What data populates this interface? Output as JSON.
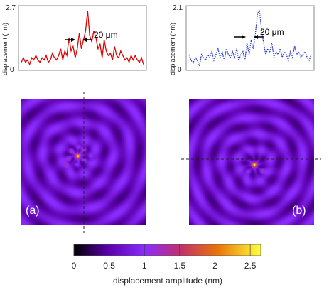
{
  "colorbar": {
    "label": "displacement amplitude (nm)",
    "ticks": [
      "0",
      "0.5",
      "1",
      "1.5",
      "2",
      "2.5"
    ],
    "tick_values": [
      0,
      0.5,
      1,
      1.5,
      2,
      2.5
    ],
    "range": [
      0,
      2.65
    ],
    "colormap": [
      "#000000",
      "#5a00a8",
      "#8a2cff",
      "#c0306a",
      "#e8740a",
      "#ffff40"
    ]
  },
  "chart_data": [
    {
      "type": "line",
      "panel": "a-profile",
      "ylabel": "displacement (nm)",
      "ylim": [
        0,
        2.7
      ],
      "ytick_labels": [
        "0",
        "2.7"
      ],
      "annotation": "20 μm",
      "line_color": "#e00000",
      "line_style": "solid",
      "x": [
        0,
        1,
        2,
        3,
        4,
        5,
        6,
        7,
        8,
        9,
        10,
        11,
        12,
        13,
        14,
        15,
        16,
        17,
        18,
        19,
        20,
        21,
        22,
        23,
        24,
        25,
        26,
        27,
        28,
        29,
        30,
        31,
        32,
        33,
        34,
        35,
        36,
        37,
        38,
        39,
        40,
        41,
        42,
        43,
        44,
        45,
        46,
        47,
        48,
        49,
        50,
        51,
        52,
        53,
        54,
        55,
        56,
        57,
        58,
        59
      ],
      "y": [
        0.3,
        0.5,
        0.3,
        0.4,
        0.2,
        0.5,
        0.4,
        0.6,
        0.4,
        0.3,
        0.5,
        0.4,
        0.6,
        0.3,
        0.4,
        0.7,
        0.5,
        0.4,
        0.6,
        0.9,
        0.4,
        0.8,
        0.6,
        1.4,
        0.8,
        1.0,
        0.5,
        0.9,
        1.6,
        0.9,
        1.3,
        1.7,
        2.6,
        1.5,
        1.2,
        1.7,
        1.4,
        0.9,
        1.1,
        0.5,
        1.3,
        0.8,
        0.6,
        0.7,
        0.4,
        1.0,
        0.6,
        0.5,
        0.8,
        0.6,
        0.4,
        0.5,
        0.3,
        0.6,
        0.4,
        0.6,
        0.4,
        0.3,
        0.5,
        0.2
      ]
    },
    {
      "type": "line",
      "panel": "b-profile",
      "ylabel": "displacement (nm)",
      "ylim": [
        0,
        2.1
      ],
      "ytick_labels": [
        "0",
        "2.1"
      ],
      "annotation": "20 μm",
      "line_color": "#2a3ad0",
      "line_style": "dotted",
      "x": [
        0,
        1,
        2,
        3,
        4,
        5,
        6,
        7,
        8,
        9,
        10,
        11,
        12,
        13,
        14,
        15,
        16,
        17,
        18,
        19,
        20,
        21,
        22,
        23,
        24,
        25,
        26,
        27,
        28,
        29,
        30,
        31,
        32,
        33,
        34,
        35,
        36,
        37,
        38,
        39,
        40,
        41,
        42,
        43,
        44,
        45,
        46,
        47,
        48,
        49,
        50,
        51,
        52,
        53,
        54,
        55,
        56,
        57,
        58,
        59
      ],
      "y": [
        0.5,
        0.3,
        0.2,
        0.4,
        0.3,
        0.1,
        0.5,
        0.4,
        0.3,
        0.5,
        0.4,
        0.6,
        0.3,
        0.5,
        0.7,
        0.4,
        0.6,
        0.3,
        0.7,
        0.5,
        0.4,
        0.6,
        0.4,
        0.7,
        0.3,
        0.5,
        0.6,
        0.3,
        0.9,
        0.5,
        1.0,
        0.7,
        1.2,
        1.9,
        2.05,
        1.4,
        0.9,
        0.5,
        0.7,
        0.6,
        0.9,
        0.4,
        0.6,
        0.5,
        0.7,
        0.4,
        0.6,
        0.5,
        0.3,
        0.6,
        0.4,
        0.8,
        0.5,
        0.6,
        0.4,
        0.5,
        0.6,
        0.4,
        0.3,
        0.5
      ]
    }
  ],
  "panels": {
    "a": {
      "label": "(a)",
      "center": [
        0.45,
        0.45
      ],
      "ring_period": 0.14,
      "hot_spots": [
        {
          "u": 0.45,
          "v": 0.45,
          "amp": 2.3
        },
        {
          "u": 0.4,
          "v": 0.41,
          "amp": 1.5
        },
        {
          "u": 0.38,
          "v": 0.47,
          "amp": 1.4
        },
        {
          "u": 0.5,
          "v": 0.4,
          "amp": 1.5
        },
        {
          "u": 0.5,
          "v": 0.48,
          "amp": 1.4
        },
        {
          "u": 0.44,
          "v": 0.52,
          "amp": 1.3
        },
        {
          "u": 0.46,
          "v": 0.38,
          "amp": 1.4
        },
        {
          "u": 0.36,
          "v": 0.52,
          "amp": 1.3
        },
        {
          "u": 0.55,
          "v": 0.45,
          "amp": 1.2
        }
      ]
    },
    "b": {
      "label": "(b)",
      "center": [
        0.52,
        0.52
      ],
      "ring_period": 0.13,
      "hot_spots": [
        {
          "u": 0.52,
          "v": 0.52,
          "amp": 2.4
        },
        {
          "u": 0.47,
          "v": 0.57,
          "amp": 1.3
        },
        {
          "u": 0.58,
          "v": 0.57,
          "amp": 1.3
        }
      ]
    }
  }
}
